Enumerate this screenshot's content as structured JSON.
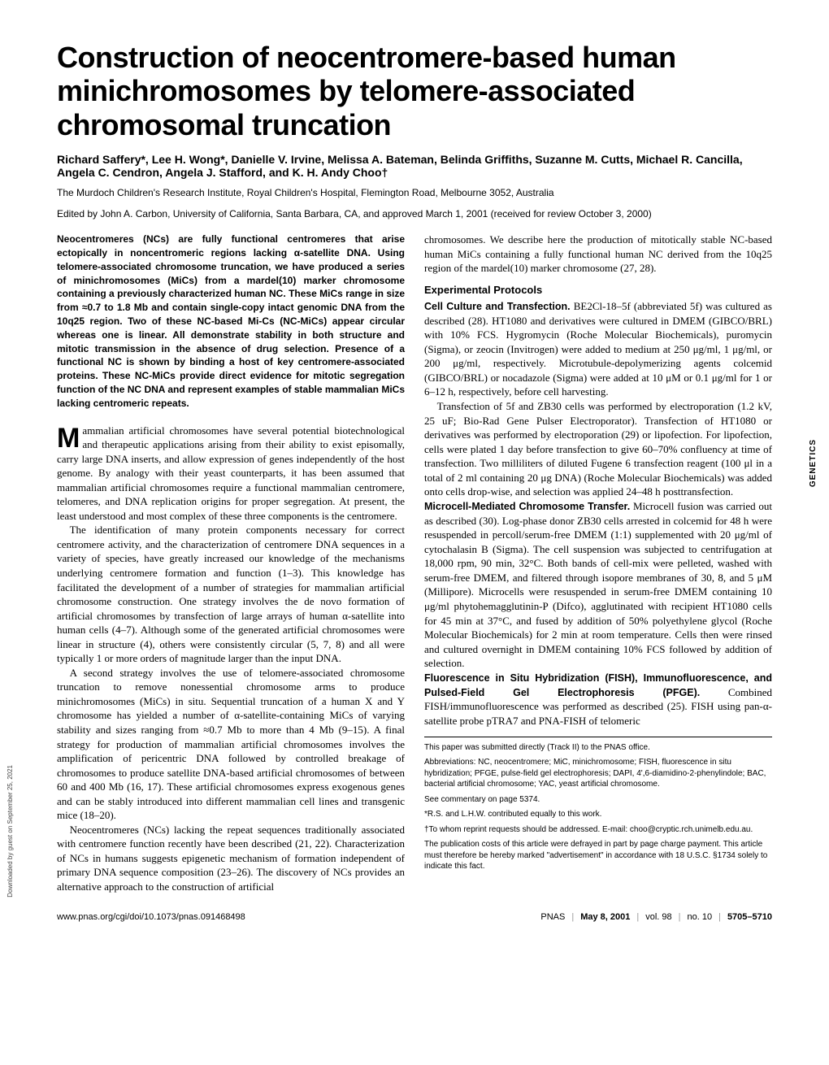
{
  "title": "Construction of neocentromere-based human minichromosomes by telomere-associated chromosomal truncation",
  "authors": "Richard Saffery*, Lee H. Wong*, Danielle V. Irvine, Melissa A. Bateman, Belinda Griffiths, Suzanne M. Cutts, Michael R. Cancilla, Angela C. Cendron, Angela J. Stafford, and K. H. Andy Choo†",
  "affiliation": "The Murdoch Children's Research Institute, Royal Children's Hospital, Flemington Road, Melbourne 3052, Australia",
  "edited": "Edited by John A. Carbon, University of California, Santa Barbara, CA, and approved March 1, 2001 (received for review October 3, 2000)",
  "abstract": "Neocentromeres (NCs) are fully functional centromeres that arise ectopically in noncentromeric regions lacking α-satellite DNA. Using telomere-associated chromosome truncation, we have produced a series of minichromosomes (MiCs) from a mardel(10) marker chromosome containing a previously characterized human NC. These MiCs range in size from ≈0.7 to 1.8 Mb and contain single-copy intact genomic DNA from the 10q25 region. Two of these NC-based Mi-Cs (NC-MiCs) appear circular whereas one is linear. All demonstrate stability in both structure and mitotic transmission in the absence of drug selection. Presence of a functional NC is shown by binding a host of key centromere-associated proteins. These NC-MiCs provide direct evidence for mitotic segregation function of the NC DNA and represent examples of stable mammalian MiCs lacking centromeric repeats.",
  "p1_first": "ammalian artificial chromosomes have several potential biotechnological and therapeutic applications arising from their ability to exist episomally, carry large DNA inserts, and allow expression of genes independently of the host genome. By analogy with their yeast counterparts, it has been assumed that mammalian artificial chromosomes require a functional mammalian centromere, telomeres, and DNA replication origins for proper segregation. At present, the least understood and most complex of these three components is the centromere.",
  "p2": "The identification of many protein components necessary for correct centromere activity, and the characterization of centromere DNA sequences in a variety of species, have greatly increased our knowledge of the mechanisms underlying centromere formation and function (1–3). This knowledge has facilitated the development of a number of strategies for mammalian artificial chromosome construction. One strategy involves the de novo formation of artificial chromosomes by transfection of large arrays of human α-satellite into human cells (4–7). Although some of the generated artificial chromosomes were linear in structure (4), others were consistently circular (5, 7, 8) and all were typically 1 or more orders of magnitude larger than the input DNA.",
  "p3": "A second strategy involves the use of telomere-associated chromosome truncation to remove nonessential chromosome arms to produce minichromosomes (MiCs) in situ. Sequential truncation of a human X and Y chromosome has yielded a number of α-satellite-containing MiCs of varying stability and sizes ranging from ≈0.7 Mb to more than 4 Mb (9–15). A final strategy for production of mammalian artificial chromosomes involves the amplification of pericentric DNA followed by controlled breakage of chromosomes to produce satellite DNA-based artificial chromosomes of between 60 and 400 Mb (16, 17). These artificial chromosomes express exogenous genes and can be stably introduced into different mammalian cell lines and transgenic mice (18–20).",
  "p4": "Neocentromeres (NCs) lacking the repeat sequences traditionally associated with centromere function recently have been described (21, 22). Characterization of NCs in humans suggests epigenetic mechanism of formation independent of primary DNA sequence composition (23–26). The discovery of NCs provides an alternative approach to the construction of artificial",
  "p5": "chromosomes. We describe here the production of mitotically stable NC-based human MiCs containing a fully functional human NC derived from the 10q25 region of the mardel(10) marker chromosome (27, 28).",
  "section1": "Experimental Protocols",
  "s1runin": "Cell Culture and Transfection.",
  "s1body": " BE2Cl-18–5f (abbreviated 5f) was cultured as described (28). HT1080 and derivatives were cultured in DMEM (GIBCO/BRL) with 10% FCS. Hygromycin (Roche Molecular Biochemicals), puromycin (Sigma), or zeocin (Invitrogen) were added to medium at 250 μg/ml, 1 μg/ml, or 200 μg/ml, respectively. Microtubule-depolymerizing agents colcemid (GIBCO/BRL) or nocadazole (Sigma) were added at 10 μM or 0.1 μg/ml for 1 or 6–12 h, respectively, before cell harvesting.",
  "s1b2": "Transfection of 5f and ZB30 cells was performed by electroporation (1.2 kV, 25 uF; Bio-Rad Gene Pulser Electroporator). Transfection of HT1080 or derivatives was performed by electroporation (29) or lipofection. For lipofection, cells were plated 1 day before transfection to give 60–70% confluency at time of transfection. Two milliliters of diluted Fugene 6 transfection reagent (100 μl in a total of 2 ml containing 20 μg DNA) (Roche Molecular Biochemicals) was added onto cells drop-wise, and selection was applied 24–48 h posttransfection.",
  "s2runin": "Microcell-Mediated Chromosome Transfer.",
  "s2body": " Microcell fusion was carried out as described (30). Log-phase donor ZB30 cells arrested in colcemid for 48 h were resuspended in percoll/serum-free DMEM (1:1) supplemented with 20 μg/ml of cytochalasin B (Sigma). The cell suspension was subjected to centrifugation at 18,000 rpm, 90 min, 32°C. Both bands of cell-mix were pelleted, washed with serum-free DMEM, and filtered through isopore membranes of 30, 8, and 5 μM (Millipore). Microcells were resuspended in serum-free DMEM containing 10 μg/ml phytohemagglutinin-P (Difco), agglutinated with recipient HT1080 cells for 45 min at 37°C, and fused by addition of 50% polyethylene glycol (Roche Molecular Biochemicals) for 2 min at room temperature. Cells then were rinsed and cultured overnight in DMEM containing 10% FCS followed by addition of selection.",
  "s3runin": "Fluorescence in Situ Hybridization (FISH), Immunofluorescence, and Pulsed-Field Gel Electrophoresis (PFGE).",
  "s3body": " Combined FISH/immunofluorescence was performed as described (25). FISH using pan-α-satellite probe pTRA7 and PNA-FISH of telomeric",
  "fn1": "This paper was submitted directly (Track II) to the PNAS office.",
  "fn2": "Abbreviations: NC, neocentromere; MiC, minichromosome; FISH, fluorescence in situ hybridization; PFGE, pulse-field gel electrophoresis; DAPI, 4',6-diamidino-2-phenylindole; BAC, bacterial artificial chromosome; YAC, yeast artificial chromosome.",
  "fn3": "See commentary on page 5374.",
  "fn4": "*R.S. and L.H.W. contributed equally to this work.",
  "fn5": "†To whom reprint requests should be addressed. E-mail: choo@cryptic.rch.unimelb.edu.au.",
  "fn6": "The publication costs of this article were defrayed in part by page charge payment. This article must therefore be hereby marked \"advertisement\" in accordance with 18 U.S.C. §1734 solely to indicate this fact.",
  "footer_left": "www.pnas.org/cgi/doi/10.1073/pnas.091468498",
  "footer_right_pnas": "PNAS",
  "footer_date": "May 8, 2001",
  "footer_vol": "vol. 98",
  "footer_no": "no. 10",
  "footer_pages": "5705–5710",
  "genetics": "GENETICS",
  "watermark": "Downloaded by guest on September 25, 2021"
}
